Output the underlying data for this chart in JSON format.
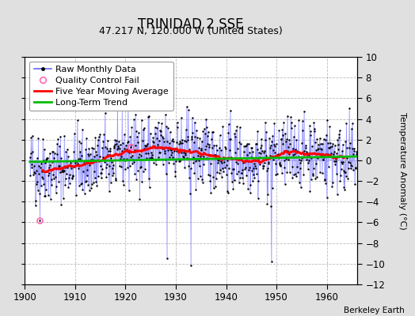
{
  "title": "TRINIDAD 2 SSE",
  "subtitle": "47.217 N, 120.000 W (United States)",
  "ylabel": "Temperature Anomaly (°C)",
  "xlabel_credit": "Berkeley Earth",
  "xlim": [
    1900,
    1966
  ],
  "ylim": [
    -12,
    10
  ],
  "yticks": [
    -12,
    -10,
    -8,
    -6,
    -4,
    -2,
    0,
    2,
    4,
    6,
    8,
    10
  ],
  "xticks": [
    1900,
    1910,
    1920,
    1930,
    1940,
    1950,
    1960
  ],
  "bg_color": "#e0e0e0",
  "plot_bg_color": "#ffffff",
  "raw_line_color": "#6666ff",
  "raw_dot_color": "#000000",
  "moving_avg_color": "#ff0000",
  "trend_color": "#00bb00",
  "qc_fail_color": "#ff69b4",
  "seed": 42,
  "n_years": 65,
  "start_year": 1901,
  "months_per_year": 12,
  "trend_slope": 0.008,
  "trend_intercept": -0.15,
  "qc_fail_indices": [
    24,
    240
  ],
  "title_fontsize": 12,
  "subtitle_fontsize": 9,
  "label_fontsize": 8,
  "tick_fontsize": 8.5,
  "credit_fontsize": 7.5
}
